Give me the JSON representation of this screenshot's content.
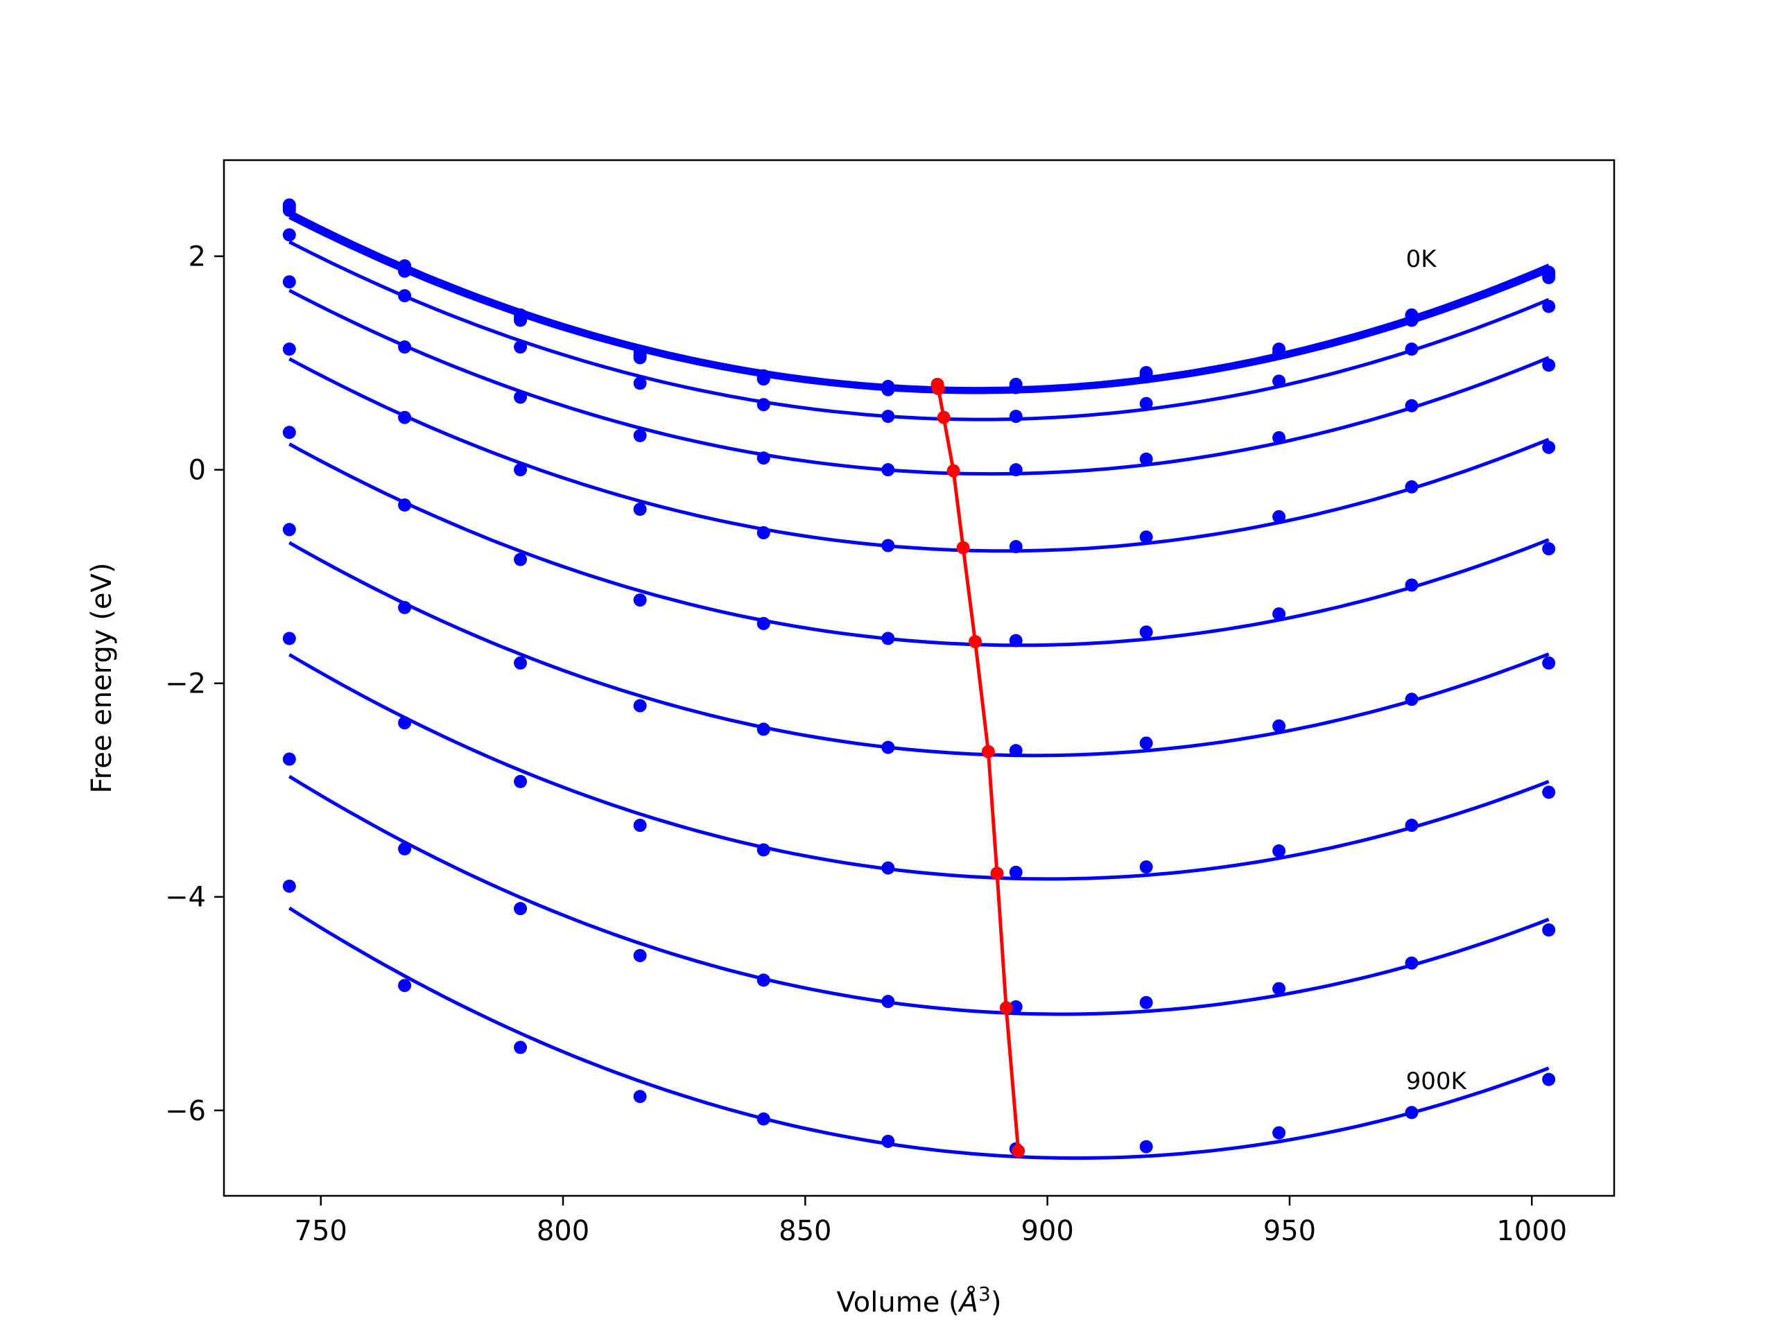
{
  "chart_data": {
    "type": "line",
    "title": "",
    "xlabel_main": "Volume (",
    "xlabel_sym": "Å",
    "xlabel_sup": "3",
    "xlabel_end": ")",
    "ylabel": "Free energy (eV)",
    "xlim": [
      730,
      1017
    ],
    "ylim": [
      -6.8,
      2.9
    ],
    "xticks": [
      750,
      800,
      850,
      900,
      950,
      1000
    ],
    "yticks": [
      2,
      0,
      -2,
      -4,
      -6
    ],
    "ytick_labels": [
      "2",
      "0",
      "−2",
      "−4",
      "−6"
    ],
    "grid": false,
    "annotations": [
      {
        "text": "0K",
        "x": 974,
        "y": 1.9
      },
      {
        "text": "900K",
        "x": 974,
        "y": -5.8
      }
    ],
    "x": [
      743.5,
      767.3,
      791.2,
      815.9,
      841.4,
      867.1,
      893.5,
      920.4,
      947.8,
      975.2,
      1003.5
    ],
    "series": [
      {
        "color": "#0000ff",
        "values": [
          2.48,
          1.91,
          1.45,
          1.1,
          0.88,
          0.78,
          0.8,
          0.91,
          1.13,
          1.45,
          1.85
        ]
      },
      {
        "color": "#0000ff",
        "values": [
          2.46,
          1.89,
          1.42,
          1.07,
          0.86,
          0.76,
          0.78,
          0.88,
          1.1,
          1.42,
          1.82
        ]
      },
      {
        "color": "#0000ff",
        "values": [
          2.43,
          1.86,
          1.4,
          1.05,
          0.85,
          0.75,
          0.77,
          0.87,
          1.09,
          1.4,
          1.8
        ]
      },
      {
        "color": "#0000ff",
        "values": [
          2.2,
          1.63,
          1.15,
          0.81,
          0.61,
          0.5,
          0.5,
          0.62,
          0.83,
          1.13,
          1.53
        ]
      },
      {
        "color": "#0000ff",
        "values": [
          1.76,
          1.15,
          0.68,
          0.32,
          0.11,
          0.0,
          0.0,
          0.1,
          0.3,
          0.6,
          0.98
        ]
      },
      {
        "color": "#0000ff",
        "values": [
          1.13,
          0.49,
          0.0,
          -0.37,
          -0.59,
          -0.71,
          -0.72,
          -0.63,
          -0.44,
          -0.16,
          0.21
        ]
      },
      {
        "color": "#0000ff",
        "values": [
          0.35,
          -0.33,
          -0.84,
          -1.22,
          -1.44,
          -1.58,
          -1.6,
          -1.52,
          -1.35,
          -1.08,
          -0.74
        ]
      },
      {
        "color": "#0000ff",
        "values": [
          -0.56,
          -1.29,
          -1.81,
          -2.21,
          -2.43,
          -2.6,
          -2.63,
          -2.56,
          -2.4,
          -2.15,
          -1.81
        ]
      },
      {
        "color": "#0000ff",
        "values": [
          -1.58,
          -2.37,
          -2.92,
          -3.33,
          -3.56,
          -3.73,
          -3.77,
          -3.72,
          -3.57,
          -3.33,
          -3.02
        ]
      },
      {
        "color": "#0000ff",
        "values": [
          -2.71,
          -3.55,
          -4.11,
          -4.55,
          -4.78,
          -4.98,
          -5.03,
          -4.99,
          -4.86,
          -4.62,
          -4.31
        ]
      },
      {
        "color": "#0000ff",
        "values": [
          -3.9,
          -4.83,
          -5.41,
          -5.87,
          -6.08,
          -6.29,
          -6.36,
          -6.34,
          -6.21,
          -6.02,
          -5.71
        ]
      }
    ],
    "minimum_curve": {
      "color": "#ff0000",
      "x": [
        877.3,
        877.5,
        878.6,
        880.6,
        882.6,
        885.1,
        887.8,
        889.6,
        891.5,
        894.0
      ],
      "y": [
        0.8,
        0.76,
        0.49,
        -0.01,
        -0.73,
        -1.61,
        -2.64,
        -3.78,
        -5.04,
        -6.38
      ]
    }
  }
}
